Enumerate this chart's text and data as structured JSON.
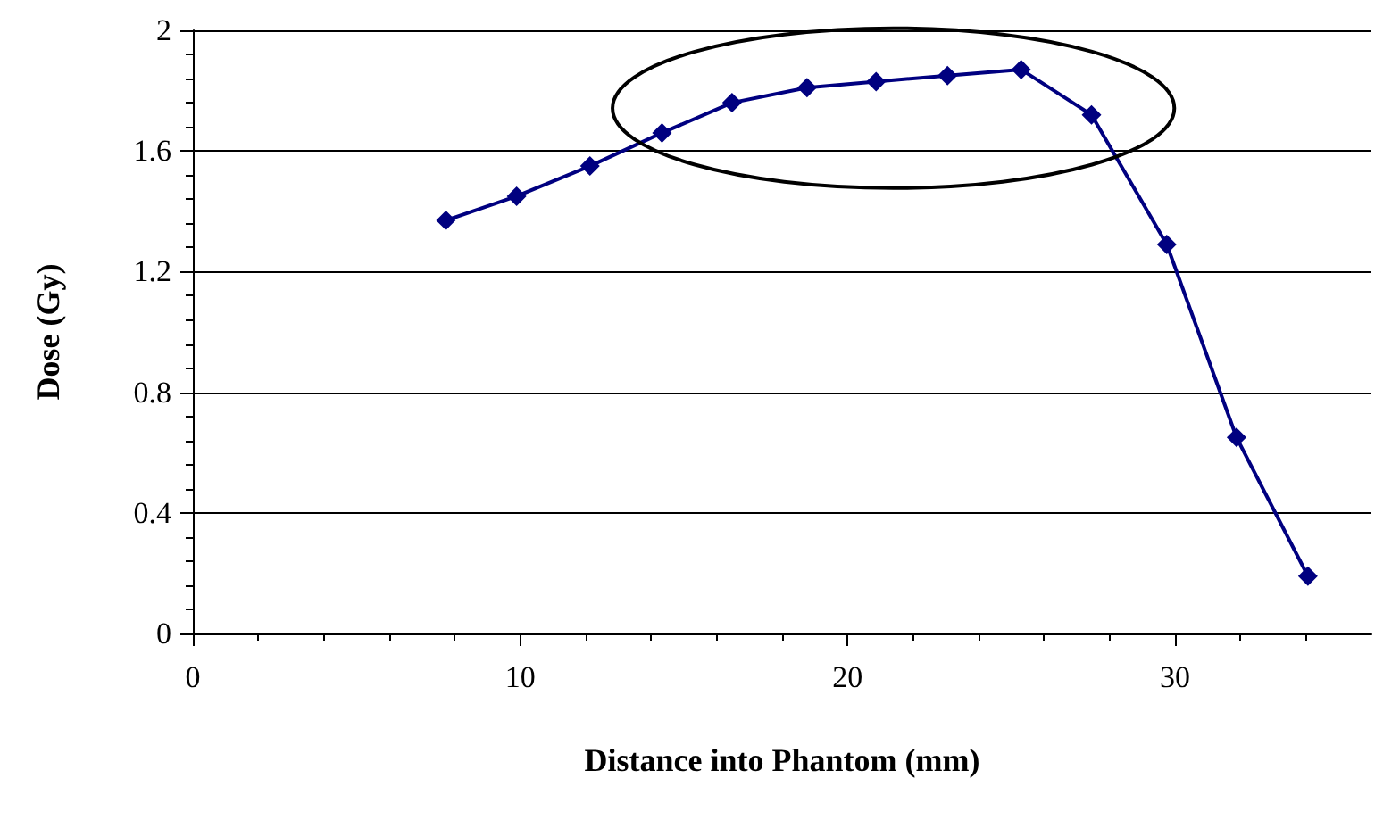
{
  "chart_data": {
    "type": "line",
    "xlabel": "Distance into Phantom (mm)",
    "ylabel": "Dose (Gy)",
    "x": [
      7.73,
      9.89,
      12.13,
      14.33,
      16.47,
      18.76,
      20.87,
      23.05,
      25.3,
      27.45,
      29.75,
      31.88,
      34.06
    ],
    "series": [
      {
        "color": "#000080",
        "values": [
          1.37,
          1.45,
          1.55,
          1.66,
          1.76,
          1.81,
          1.83,
          1.85,
          1.87,
          1.72,
          1.29,
          0.65,
          0.19
        ]
      }
    ],
    "xlim": [
      0,
      36
    ],
    "xticks": [
      0,
      10,
      20,
      30
    ],
    "ylim": [
      0,
      2
    ],
    "yticks": [
      0,
      0.4,
      0.8,
      1.2,
      1.6,
      2
    ],
    "grid": "y",
    "marker": "diamond",
    "line_style": "solid"
  }
}
